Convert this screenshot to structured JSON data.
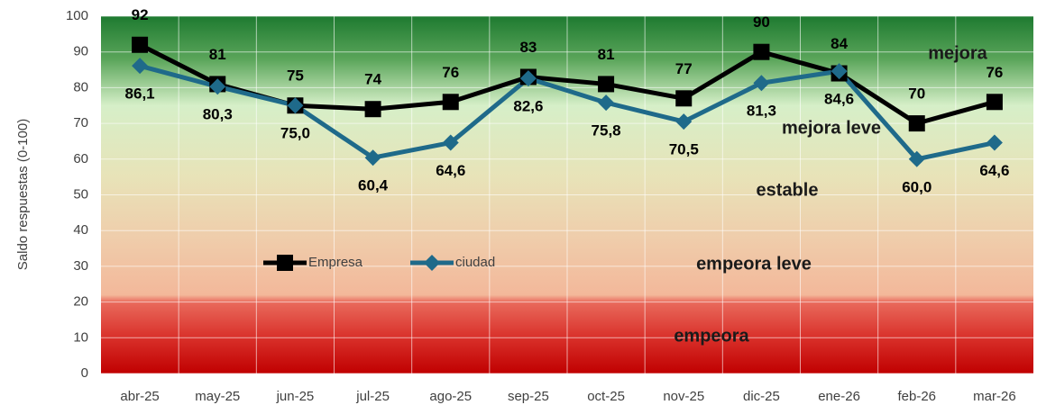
{
  "chart_data": {
    "type": "line",
    "y_label": "Saldo respuestas (0-100)",
    "categories": [
      "abr-25",
      "may-25",
      "jun-25",
      "jul-25",
      "ago-25",
      "sep-25",
      "oct-25",
      "nov-25",
      "dic-25",
      "ene-26",
      "feb-26",
      "mar-26"
    ],
    "series": [
      {
        "name": "Empresa",
        "color": "#000000",
        "marker": "square",
        "values": [
          92,
          81,
          75,
          74,
          76,
          83,
          81,
          77,
          90,
          84,
          70,
          76
        ]
      },
      {
        "name": "ciudad",
        "color": "#1f6a8a",
        "marker": "diamond",
        "values": [
          86.1,
          80.3,
          75.0,
          60.4,
          64.6,
          82.6,
          75.8,
          70.5,
          81.3,
          84.6,
          60.0,
          64.6
        ],
        "value_labels": [
          "86,1",
          "80,3",
          "75,0",
          "60,4",
          "64,6",
          "82,6",
          "75,8",
          "70,5",
          "81,3",
          "84,6",
          "60,0",
          "64,6"
        ]
      }
    ],
    "ylim": [
      0,
      100
    ],
    "yticks": [
      0,
      10,
      20,
      30,
      40,
      50,
      60,
      70,
      80,
      90,
      100
    ],
    "grid": true,
    "annotations": [
      "mejora",
      "mejora leve",
      "estable",
      "empeora leve",
      "empeora"
    ]
  }
}
